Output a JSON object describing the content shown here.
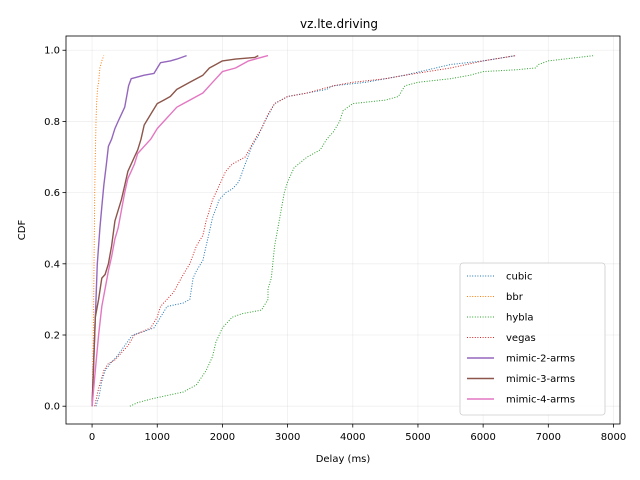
{
  "chart_data": {
    "type": "line",
    "title": "vz.lte.driving",
    "xlabel": "Delay (ms)",
    "ylabel": "CDF",
    "xlim": [
      -400,
      8100
    ],
    "ylim": [
      -0.05,
      1.04
    ],
    "xticks": [
      0,
      1000,
      2000,
      3000,
      4000,
      5000,
      6000,
      7000,
      8000
    ],
    "xtick_labels": [
      "0",
      "1000",
      "2000",
      "3000",
      "4000",
      "5000",
      "6000",
      "7000",
      "8000"
    ],
    "yticks": [
      0.0,
      0.2,
      0.4,
      0.6,
      0.8,
      1.0
    ],
    "ytick_labels": [
      "0.0",
      "0.2",
      "0.4",
      "0.6",
      "0.8",
      "1.0"
    ],
    "grid": true,
    "legend_position": "lower-right",
    "series": [
      {
        "name": "cubic",
        "color": "#1f77b4",
        "style": "dotted",
        "x": [
          60,
          110,
          150,
          200,
          280,
          380,
          500,
          620,
          800,
          950,
          1050,
          1150,
          1400,
          1500,
          1550,
          1600,
          1700,
          1750,
          1800,
          1850,
          1950,
          2050,
          2150,
          2250,
          2350,
          2450,
          2550,
          2650,
          2800,
          3000,
          3300,
          3600,
          3700,
          4200,
          4800,
          5500,
          6000,
          6500
        ],
        "y": [
          0.0,
          0.03,
          0.07,
          0.1,
          0.12,
          0.14,
          0.17,
          0.2,
          0.21,
          0.22,
          0.25,
          0.28,
          0.29,
          0.3,
          0.36,
          0.38,
          0.41,
          0.45,
          0.49,
          0.53,
          0.58,
          0.6,
          0.61,
          0.63,
          0.68,
          0.73,
          0.76,
          0.8,
          0.85,
          0.87,
          0.88,
          0.89,
          0.9,
          0.91,
          0.93,
          0.96,
          0.97,
          0.985
        ]
      },
      {
        "name": "bbr",
        "color": "#ff7f0e",
        "style": "dotted",
        "x": [
          0,
          5,
          10,
          15,
          20,
          25,
          30,
          35,
          40,
          50,
          60,
          70,
          80,
          90,
          100,
          110,
          120,
          150,
          180
        ],
        "y": [
          0.0,
          0.05,
          0.1,
          0.15,
          0.2,
          0.3,
          0.4,
          0.5,
          0.6,
          0.7,
          0.8,
          0.85,
          0.88,
          0.9,
          0.91,
          0.93,
          0.95,
          0.97,
          0.985
        ]
      },
      {
        "name": "hybla",
        "color": "#2ca02c",
        "style": "dotted",
        "x": [
          580,
          700,
          900,
          1150,
          1400,
          1600,
          1750,
          1850,
          1900,
          1950,
          2000,
          2050,
          2150,
          2300,
          2600,
          2700,
          2700,
          2750,
          2800,
          2900,
          2950,
          3000,
          3100,
          3300,
          3500,
          3600,
          3700,
          3800,
          3850,
          4000,
          4500,
          4700,
          4800,
          5000,
          5500,
          5800,
          6000,
          6500,
          6800,
          6850,
          7000,
          7700
        ],
        "y": [
          0.0,
          0.01,
          0.02,
          0.03,
          0.04,
          0.06,
          0.1,
          0.14,
          0.18,
          0.2,
          0.22,
          0.23,
          0.25,
          0.26,
          0.27,
          0.3,
          0.33,
          0.36,
          0.45,
          0.55,
          0.6,
          0.63,
          0.67,
          0.7,
          0.72,
          0.75,
          0.77,
          0.8,
          0.83,
          0.85,
          0.86,
          0.87,
          0.9,
          0.91,
          0.92,
          0.93,
          0.94,
          0.945,
          0.95,
          0.96,
          0.97,
          0.985
        ]
      },
      {
        "name": "vegas",
        "color": "#d62728",
        "style": "dotted",
        "x": [
          40,
          100,
          180,
          250,
          350,
          450,
          550,
          650,
          900,
          1000,
          1050,
          1150,
          1250,
          1400,
          1500,
          1600,
          1700,
          1750,
          1850,
          1950,
          2050,
          2150,
          2350,
          2500,
          2600,
          2700,
          2800,
          3000,
          3300,
          3500,
          3700,
          4000,
          4500,
          4800,
          5500,
          6000,
          6500
        ],
        "y": [
          0.0,
          0.05,
          0.1,
          0.12,
          0.13,
          0.15,
          0.17,
          0.2,
          0.22,
          0.25,
          0.28,
          0.3,
          0.32,
          0.37,
          0.4,
          0.45,
          0.48,
          0.52,
          0.58,
          0.62,
          0.66,
          0.68,
          0.7,
          0.75,
          0.78,
          0.82,
          0.85,
          0.87,
          0.88,
          0.89,
          0.9,
          0.91,
          0.92,
          0.93,
          0.95,
          0.97,
          0.985
        ]
      },
      {
        "name": "mimic-2-arms",
        "color": "#9467bd",
        "style": "solid",
        "x": [
          0,
          20,
          40,
          60,
          80,
          100,
          120,
          150,
          180,
          220,
          250,
          300,
          350,
          400,
          450,
          500,
          520,
          540,
          560,
          580,
          600,
          700,
          800,
          950,
          1050,
          1200,
          1300,
          1450
        ],
        "y": [
          0.0,
          0.1,
          0.2,
          0.3,
          0.4,
          0.45,
          0.5,
          0.56,
          0.62,
          0.68,
          0.73,
          0.75,
          0.78,
          0.8,
          0.82,
          0.84,
          0.86,
          0.88,
          0.9,
          0.91,
          0.92,
          0.925,
          0.93,
          0.935,
          0.965,
          0.97,
          0.975,
          0.985
        ]
      },
      {
        "name": "mimic-3-arms",
        "color": "#8c564b",
        "style": "solid",
        "x": [
          0,
          20,
          50,
          100,
          150,
          200,
          250,
          300,
          350,
          400,
          450,
          500,
          550,
          600,
          650,
          700,
          750,
          800,
          900,
          1000,
          1100,
          1200,
          1300,
          1500,
          1700,
          1800,
          1900,
          2000,
          2200,
          2500,
          2550
        ],
        "y": [
          0.0,
          0.1,
          0.25,
          0.3,
          0.36,
          0.37,
          0.4,
          0.45,
          0.52,
          0.55,
          0.58,
          0.62,
          0.66,
          0.68,
          0.7,
          0.72,
          0.75,
          0.79,
          0.82,
          0.85,
          0.86,
          0.87,
          0.89,
          0.91,
          0.93,
          0.95,
          0.96,
          0.97,
          0.975,
          0.98,
          0.985
        ]
      },
      {
        "name": "mimic-4-arms",
        "color": "#e377c2",
        "style": "solid",
        "x": [
          0,
          50,
          100,
          150,
          200,
          250,
          300,
          350,
          400,
          450,
          500,
          550,
          600,
          650,
          700,
          800,
          900,
          1000,
          1100,
          1200,
          1300,
          1400,
          1500,
          1600,
          1700,
          1800,
          1900,
          2000,
          2200,
          2400,
          2700
        ],
        "y": [
          0.0,
          0.1,
          0.2,
          0.28,
          0.33,
          0.38,
          0.42,
          0.47,
          0.5,
          0.55,
          0.6,
          0.64,
          0.66,
          0.68,
          0.71,
          0.73,
          0.75,
          0.78,
          0.8,
          0.82,
          0.84,
          0.85,
          0.86,
          0.87,
          0.88,
          0.9,
          0.92,
          0.94,
          0.95,
          0.97,
          0.985
        ]
      }
    ]
  }
}
